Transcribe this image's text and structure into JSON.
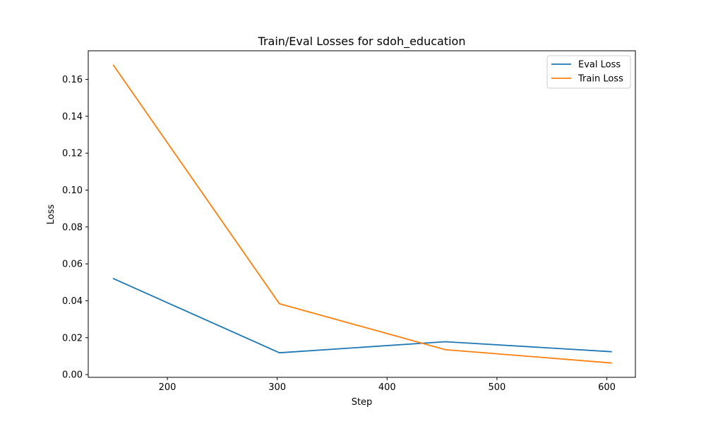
{
  "chart_data": {
    "type": "line",
    "title": "Train/Eval Losses for sdoh_education",
    "xlabel": "Step",
    "ylabel": "Loss",
    "xlim": [
      128,
      626
    ],
    "ylim": [
      -0.0015,
      0.1755
    ],
    "xticks": [
      200,
      300,
      400,
      500,
      600
    ],
    "yticks": [
      0.0,
      0.02,
      0.04,
      0.06,
      0.08,
      0.1,
      0.12,
      0.14,
      0.16
    ],
    "ytick_labels": [
      "0.00",
      "0.02",
      "0.04",
      "0.06",
      "0.08",
      "0.10",
      "0.12",
      "0.14",
      "0.16"
    ],
    "grid": false,
    "legend_position": "top-right",
    "series": [
      {
        "name": "Eval Loss",
        "color": "#1f77b4",
        "x": [
          151,
          302,
          453,
          604
        ],
        "y": [
          0.052,
          0.0118,
          0.0178,
          0.0124
        ]
      },
      {
        "name": "Train Loss",
        "color": "#ff7f0e",
        "x": [
          151,
          302,
          453,
          604
        ],
        "y": [
          0.1676,
          0.0384,
          0.0135,
          0.0063
        ]
      }
    ]
  }
}
